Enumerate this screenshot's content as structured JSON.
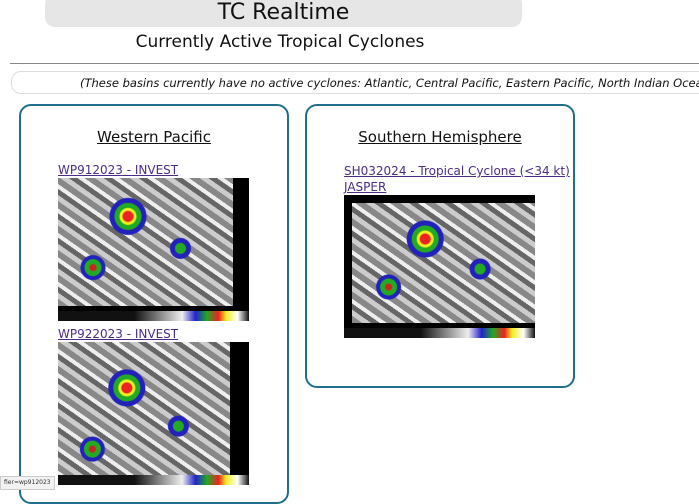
{
  "header": {
    "title": "TC Realtime",
    "subtitle": "Currently Active Tropical Cyclones"
  },
  "notice": "(These basins currently have no active cyclones: Atlantic, Central Pacific, Eastern Pacific, North Indian Ocean)",
  "basins": [
    {
      "name": "Western Pacific",
      "storms": [
        {
          "label": "WP912023 - INVEST"
        },
        {
          "label": "WP922023 - INVEST"
        }
      ]
    },
    {
      "name": "Southern Hemisphere",
      "storms": [
        {
          "label": "SH032024 - Tropical Cyclone (<34 kt)",
          "label2": "JASPER"
        }
      ]
    }
  ],
  "status_bar": "fier=wp912023",
  "colors": {
    "card_border": "#1f6f8b",
    "link": "#4b2d86"
  }
}
